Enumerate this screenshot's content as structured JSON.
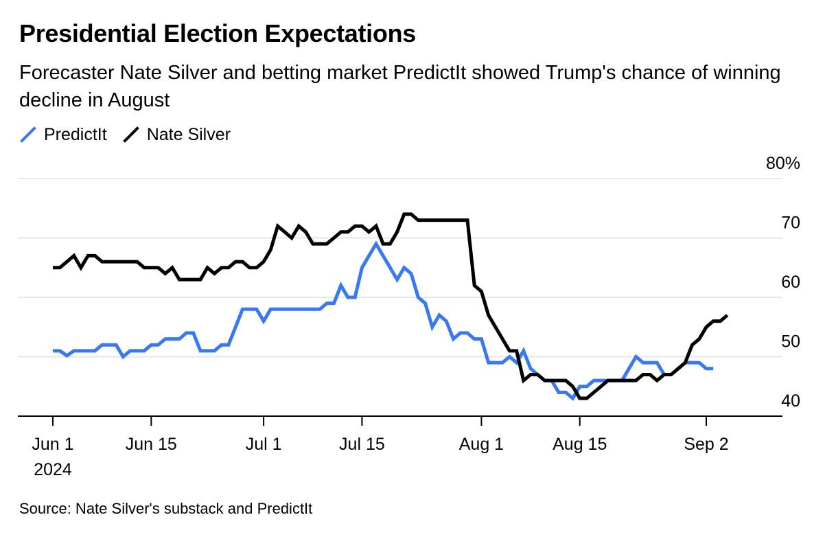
{
  "header": {
    "title": "Presidential Election Expectations",
    "subtitle": "Forecaster Nate Silver and betting market PredictIt showed Trump's chance of winning decline in August"
  },
  "legend": [
    {
      "label": "PredictIt",
      "color": "#3a78f2"
    },
    {
      "label": "Nate Silver",
      "color": "#000000"
    }
  ],
  "footer": {
    "source": "Source: Nate Silver's substack and PredictIt"
  },
  "chart_data": {
    "type": "line",
    "x_start": "2024-06-01",
    "x_end": "2024-09-02",
    "x_ticks": [
      {
        "date": "2024-06-01",
        "label": "Jun 1",
        "sublabel": "2024"
      },
      {
        "date": "2024-06-15",
        "label": "Jun 15"
      },
      {
        "date": "2024-07-01",
        "label": "Jul 1"
      },
      {
        "date": "2024-07-15",
        "label": "Jul 15"
      },
      {
        "date": "2024-08-01",
        "label": "Aug 1"
      },
      {
        "date": "2024-08-15",
        "label": "Aug 15"
      },
      {
        "date": "2024-09-02",
        "label": "Sep 2"
      }
    ],
    "y_ticks": [
      {
        "value": 40,
        "label": "40"
      },
      {
        "value": 50,
        "label": "50"
      },
      {
        "value": 60,
        "label": "60"
      },
      {
        "value": 70,
        "label": "70"
      },
      {
        "value": 80,
        "label": "80%"
      }
    ],
    "ylim": [
      40,
      80
    ],
    "grid": true,
    "legend_position": "top-left",
    "series": [
      {
        "name": "PredictIt",
        "color": "#3a78f2",
        "points": [
          [
            "2024-06-01",
            51
          ],
          [
            "2024-06-02",
            51
          ],
          [
            "2024-06-03",
            50.2
          ],
          [
            "2024-06-04",
            51
          ],
          [
            "2024-06-06",
            51
          ],
          [
            "2024-06-07",
            51
          ],
          [
            "2024-06-08",
            52
          ],
          [
            "2024-06-09",
            52
          ],
          [
            "2024-06-10",
            52
          ],
          [
            "2024-06-11",
            50
          ],
          [
            "2024-06-12",
            51
          ],
          [
            "2024-06-13",
            51
          ],
          [
            "2024-06-14",
            51
          ],
          [
            "2024-06-15",
            52
          ],
          [
            "2024-06-16",
            52
          ],
          [
            "2024-06-17",
            53
          ],
          [
            "2024-06-18",
            53
          ],
          [
            "2024-06-19",
            53
          ],
          [
            "2024-06-20",
            54
          ],
          [
            "2024-06-21",
            54
          ],
          [
            "2024-06-22",
            51
          ],
          [
            "2024-06-23",
            51
          ],
          [
            "2024-06-24",
            51
          ],
          [
            "2024-06-25",
            52
          ],
          [
            "2024-06-26",
            52
          ],
          [
            "2024-06-27",
            55
          ],
          [
            "2024-06-28",
            58
          ],
          [
            "2024-06-29",
            58
          ],
          [
            "2024-06-30",
            58
          ],
          [
            "2024-07-01",
            56
          ],
          [
            "2024-07-02",
            58
          ],
          [
            "2024-07-03",
            58
          ],
          [
            "2024-07-06",
            58
          ],
          [
            "2024-07-08",
            58
          ],
          [
            "2024-07-09",
            58
          ],
          [
            "2024-07-10",
            59
          ],
          [
            "2024-07-11",
            59
          ],
          [
            "2024-07-12",
            62
          ],
          [
            "2024-07-13",
            60
          ],
          [
            "2024-07-14",
            60
          ],
          [
            "2024-07-15",
            65
          ],
          [
            "2024-07-16",
            67
          ],
          [
            "2024-07-17",
            69
          ],
          [
            "2024-07-18",
            67
          ],
          [
            "2024-07-19",
            65
          ],
          [
            "2024-07-20",
            63
          ],
          [
            "2024-07-21",
            65
          ],
          [
            "2024-07-22",
            64
          ],
          [
            "2024-07-23",
            60
          ],
          [
            "2024-07-24",
            59
          ],
          [
            "2024-07-25",
            55
          ],
          [
            "2024-07-26",
            57
          ],
          [
            "2024-07-27",
            56
          ],
          [
            "2024-07-28",
            53
          ],
          [
            "2024-07-29",
            54
          ],
          [
            "2024-07-30",
            54
          ],
          [
            "2024-07-31",
            53
          ],
          [
            "2024-08-01",
            53
          ],
          [
            "2024-08-02",
            49
          ],
          [
            "2024-08-03",
            49
          ],
          [
            "2024-08-04",
            49
          ],
          [
            "2024-08-05",
            50
          ],
          [
            "2024-08-06",
            49
          ],
          [
            "2024-08-07",
            51
          ],
          [
            "2024-08-08",
            48
          ],
          [
            "2024-08-09",
            47
          ],
          [
            "2024-08-10",
            46
          ],
          [
            "2024-08-11",
            46
          ],
          [
            "2024-08-12",
            44
          ],
          [
            "2024-08-13",
            44
          ],
          [
            "2024-08-14",
            43
          ],
          [
            "2024-08-15",
            45
          ],
          [
            "2024-08-16",
            45
          ],
          [
            "2024-08-17",
            46
          ],
          [
            "2024-08-18",
            46
          ],
          [
            "2024-08-19",
            46
          ],
          [
            "2024-08-20",
            46
          ],
          [
            "2024-08-21",
            46
          ],
          [
            "2024-08-22",
            48
          ],
          [
            "2024-08-23",
            50
          ],
          [
            "2024-08-24",
            49
          ],
          [
            "2024-08-25",
            49
          ],
          [
            "2024-08-26",
            49
          ],
          [
            "2024-08-27",
            47
          ],
          [
            "2024-08-28",
            47
          ],
          [
            "2024-08-29",
            48
          ],
          [
            "2024-08-30",
            49
          ],
          [
            "2024-08-31",
            49
          ],
          [
            "2024-09-01",
            49
          ],
          [
            "2024-09-02",
            48
          ],
          [
            "2024-09-03",
            48
          ]
        ]
      },
      {
        "name": "Nate Silver",
        "color": "#000000",
        "points": [
          [
            "2024-06-01",
            65
          ],
          [
            "2024-06-02",
            65
          ],
          [
            "2024-06-03",
            66
          ],
          [
            "2024-06-04",
            67
          ],
          [
            "2024-06-05",
            65
          ],
          [
            "2024-06-06",
            67
          ],
          [
            "2024-06-07",
            67
          ],
          [
            "2024-06-08",
            66
          ],
          [
            "2024-06-09",
            66
          ],
          [
            "2024-06-11",
            66
          ],
          [
            "2024-06-13",
            66
          ],
          [
            "2024-06-14",
            65
          ],
          [
            "2024-06-15",
            65
          ],
          [
            "2024-06-16",
            65
          ],
          [
            "2024-06-17",
            64
          ],
          [
            "2024-06-18",
            65
          ],
          [
            "2024-06-19",
            63
          ],
          [
            "2024-06-20",
            63
          ],
          [
            "2024-06-21",
            63
          ],
          [
            "2024-06-22",
            63
          ],
          [
            "2024-06-23",
            65
          ],
          [
            "2024-06-24",
            64
          ],
          [
            "2024-06-25",
            65
          ],
          [
            "2024-06-26",
            65
          ],
          [
            "2024-06-27",
            66
          ],
          [
            "2024-06-28",
            66
          ],
          [
            "2024-06-29",
            65
          ],
          [
            "2024-06-30",
            65
          ],
          [
            "2024-07-01",
            66
          ],
          [
            "2024-07-02",
            68
          ],
          [
            "2024-07-03",
            72
          ],
          [
            "2024-07-04",
            71
          ],
          [
            "2024-07-05",
            70
          ],
          [
            "2024-07-06",
            72
          ],
          [
            "2024-07-07",
            71
          ],
          [
            "2024-07-08",
            69
          ],
          [
            "2024-07-09",
            69
          ],
          [
            "2024-07-10",
            69
          ],
          [
            "2024-07-11",
            70
          ],
          [
            "2024-07-12",
            71
          ],
          [
            "2024-07-13",
            71
          ],
          [
            "2024-07-14",
            72
          ],
          [
            "2024-07-15",
            72
          ],
          [
            "2024-07-16",
            71
          ],
          [
            "2024-07-17",
            72
          ],
          [
            "2024-07-18",
            69
          ],
          [
            "2024-07-19",
            69
          ],
          [
            "2024-07-20",
            71
          ],
          [
            "2024-07-21",
            74
          ],
          [
            "2024-07-22",
            74
          ],
          [
            "2024-07-23",
            73
          ],
          [
            "2024-07-25",
            73
          ],
          [
            "2024-07-27",
            73
          ],
          [
            "2024-07-29",
            73
          ],
          [
            "2024-07-30",
            73
          ],
          [
            "2024-07-31",
            62
          ],
          [
            "2024-08-01",
            61
          ],
          [
            "2024-08-02",
            57
          ],
          [
            "2024-08-03",
            55
          ],
          [
            "2024-08-04",
            53
          ],
          [
            "2024-08-05",
            51
          ],
          [
            "2024-08-06",
            51
          ],
          [
            "2024-08-07",
            46
          ],
          [
            "2024-08-08",
            47
          ],
          [
            "2024-08-09",
            47
          ],
          [
            "2024-08-10",
            46
          ],
          [
            "2024-08-11",
            46
          ],
          [
            "2024-08-12",
            46
          ],
          [
            "2024-08-13",
            46
          ],
          [
            "2024-08-14",
            45
          ],
          [
            "2024-08-15",
            43
          ],
          [
            "2024-08-16",
            43
          ],
          [
            "2024-08-17",
            44
          ],
          [
            "2024-08-18",
            45
          ],
          [
            "2024-08-19",
            46
          ],
          [
            "2024-08-20",
            46
          ],
          [
            "2024-08-21",
            46
          ],
          [
            "2024-08-22",
            46
          ],
          [
            "2024-08-23",
            46
          ],
          [
            "2024-08-24",
            47
          ],
          [
            "2024-08-25",
            47
          ],
          [
            "2024-08-26",
            46
          ],
          [
            "2024-08-27",
            47
          ],
          [
            "2024-08-28",
            47
          ],
          [
            "2024-08-29",
            48
          ],
          [
            "2024-08-30",
            49
          ],
          [
            "2024-08-31",
            52
          ],
          [
            "2024-09-01",
            53
          ],
          [
            "2024-09-02",
            55
          ],
          [
            "2024-09-03",
            56
          ],
          [
            "2024-09-04",
            56
          ],
          [
            "2024-09-05",
            57
          ]
        ]
      }
    ]
  }
}
